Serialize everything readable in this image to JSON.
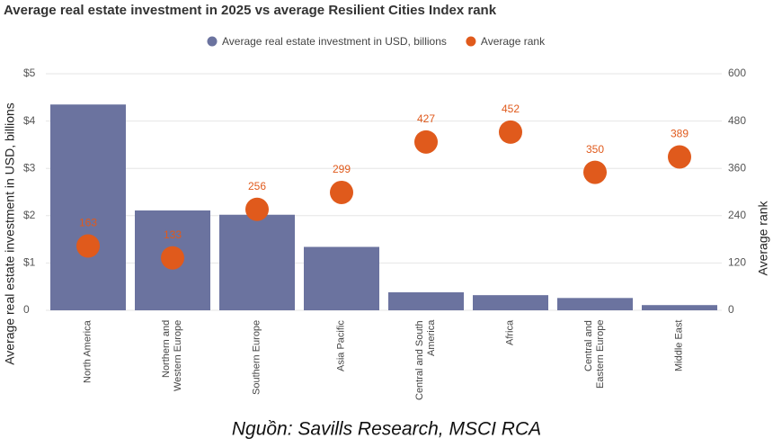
{
  "chart_data": {
    "type": "bar+scatter",
    "title": "Average real estate investment in 2025 vs average Resilient Cities Index rank",
    "categories": [
      "North America",
      "Northern and Western Europe",
      "Southern Europe",
      "Asia Pacific",
      "Central and South America",
      "Africa",
      "Central and Eastern Europe",
      "Middle East"
    ],
    "series": [
      {
        "name": "Average real estate investment in USD, billions",
        "color": "#6b739f",
        "type": "bar",
        "values": [
          4.35,
          2.11,
          2.02,
          1.34,
          0.38,
          0.32,
          0.26,
          0.11
        ]
      },
      {
        "name": "Average rank",
        "color": "#e05a1c",
        "type": "scatter",
        "axis": "y2",
        "values": [
          163,
          133,
          256,
          299,
          427,
          452,
          350,
          389
        ]
      }
    ],
    "ylabel": "Average real estate investment in USD, billions",
    "y2label": "Average rank",
    "ylim": [
      0,
      5
    ],
    "yticks": [
      0,
      {
        "value": 1,
        "label": "$1"
      },
      {
        "value": 2,
        "label": "$2"
      },
      {
        "value": 3,
        "label": "$3"
      },
      {
        "value": 4,
        "label": "$4"
      },
      {
        "value": 5,
        "label": "$5"
      }
    ],
    "y2lim": [
      0,
      600
    ],
    "y2ticks": [
      0,
      120,
      240,
      360,
      480,
      600
    ],
    "grid": true,
    "source": "Nguồn: Savills Research, MSCI RCA"
  }
}
